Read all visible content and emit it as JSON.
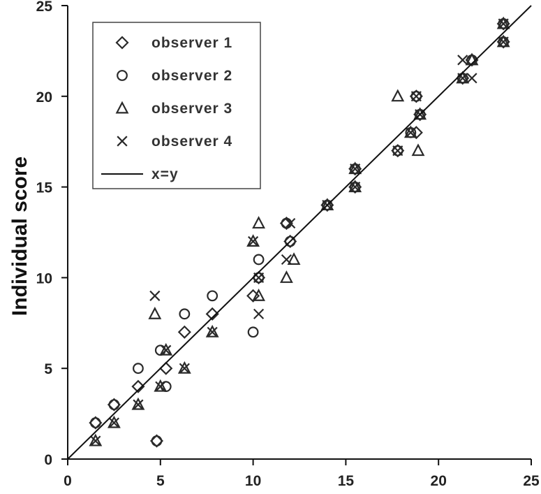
{
  "chart_data": {
    "type": "scatter",
    "ylabel": "Individual score",
    "xlabel": "",
    "xlim": [
      0,
      25
    ],
    "ylim": [
      0,
      25
    ],
    "x_ticks": [
      0,
      5,
      10,
      15,
      20,
      25
    ],
    "y_ticks": [
      0,
      5,
      10,
      15,
      20,
      25
    ],
    "grid": false,
    "legend_position": "top-left",
    "series": [
      {
        "name": "observer 1",
        "marker": "diamond",
        "points": [
          [
            1.5,
            2
          ],
          [
            2.5,
            3
          ],
          [
            3.8,
            4
          ],
          [
            4.8,
            1
          ],
          [
            5.3,
            5
          ],
          [
            6.3,
            7
          ],
          [
            7.8,
            8
          ],
          [
            10,
            9
          ],
          [
            10.3,
            10
          ],
          [
            11.8,
            13
          ],
          [
            12,
            12
          ],
          [
            14,
            14
          ],
          [
            15.5,
            15
          ],
          [
            15.5,
            16
          ],
          [
            17.8,
            17
          ],
          [
            18.8,
            18
          ],
          [
            18.8,
            20
          ],
          [
            19,
            19
          ],
          [
            21.3,
            21
          ],
          [
            21.8,
            22
          ],
          [
            23.5,
            23
          ],
          [
            23.5,
            24
          ]
        ]
      },
      {
        "name": "observer 2",
        "marker": "circle",
        "points": [
          [
            1.5,
            2
          ],
          [
            2.5,
            3
          ],
          [
            3.8,
            5
          ],
          [
            4.8,
            1
          ],
          [
            5,
            6
          ],
          [
            5.3,
            4
          ],
          [
            6.3,
            8
          ],
          [
            7.8,
            9
          ],
          [
            10,
            7
          ],
          [
            10.3,
            10
          ],
          [
            10.3,
            11
          ],
          [
            11.8,
            13
          ],
          [
            12,
            12
          ],
          [
            14,
            14
          ],
          [
            15.5,
            15
          ],
          [
            15.5,
            16
          ],
          [
            17.8,
            17
          ],
          [
            18.5,
            18
          ],
          [
            18.8,
            20
          ],
          [
            19,
            19
          ],
          [
            21.3,
            21
          ],
          [
            21.8,
            22
          ],
          [
            23.5,
            23
          ],
          [
            23.5,
            24
          ]
        ]
      },
      {
        "name": "observer 3",
        "marker": "triangle",
        "points": [
          [
            1.5,
            1
          ],
          [
            2.5,
            2
          ],
          [
            3.8,
            3
          ],
          [
            4.7,
            8
          ],
          [
            5,
            4
          ],
          [
            5.3,
            6
          ],
          [
            6.3,
            5
          ],
          [
            7.8,
            7
          ],
          [
            10,
            12
          ],
          [
            10.3,
            9
          ],
          [
            10.3,
            13
          ],
          [
            11.8,
            10
          ],
          [
            12.2,
            11
          ],
          [
            14,
            14
          ],
          [
            15.5,
            15
          ],
          [
            15.5,
            16
          ],
          [
            17.8,
            20
          ],
          [
            18.5,
            18
          ],
          [
            18.9,
            17
          ],
          [
            19,
            19
          ],
          [
            21.3,
            21
          ],
          [
            21.8,
            22
          ],
          [
            23.5,
            23
          ],
          [
            23.5,
            24
          ]
        ]
      },
      {
        "name": "observer 4",
        "marker": "x",
        "points": [
          [
            1.5,
            1
          ],
          [
            2.5,
            2
          ],
          [
            3.8,
            3
          ],
          [
            4.7,
            9
          ],
          [
            5,
            4
          ],
          [
            5.3,
            6
          ],
          [
            6.3,
            5
          ],
          [
            7.8,
            7
          ],
          [
            10,
            12
          ],
          [
            10.3,
            8
          ],
          [
            10.3,
            10
          ],
          [
            11.8,
            11
          ],
          [
            12,
            13
          ],
          [
            14,
            14
          ],
          [
            15.5,
            15
          ],
          [
            15.5,
            16
          ],
          [
            17.8,
            17
          ],
          [
            18.5,
            18
          ],
          [
            18.8,
            20
          ],
          [
            19,
            19
          ],
          [
            21.3,
            21
          ],
          [
            21.3,
            22
          ],
          [
            21.8,
            21
          ],
          [
            23.5,
            23
          ],
          [
            23.5,
            24
          ]
        ]
      },
      {
        "name": "x=y",
        "marker": "line",
        "points": [
          [
            0,
            0
          ],
          [
            25,
            25
          ]
        ]
      }
    ]
  }
}
